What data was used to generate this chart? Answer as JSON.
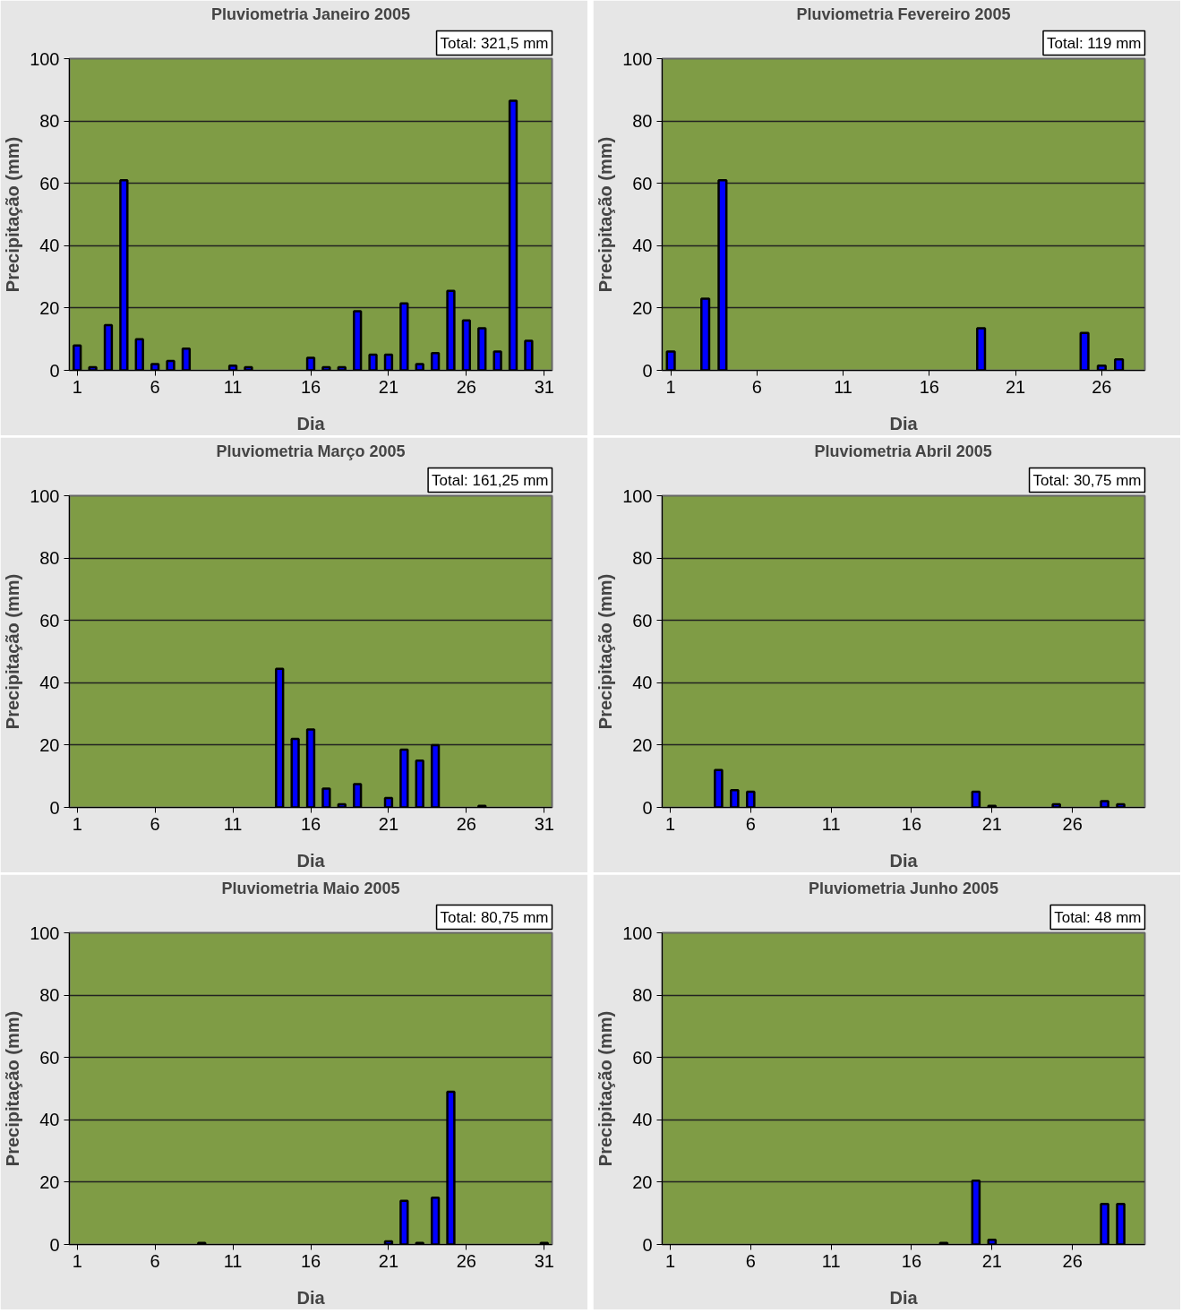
{
  "chart_data": [
    {
      "type": "bar",
      "title": "Pluviometria Janeiro 2005",
      "xlabel": "Dia",
      "ylabel": "Precipitação (mm)",
      "annotations": [
        "Total: 321,5 mm"
      ],
      "color": "#0000ff",
      "grid": "y",
      "xlim": [
        0.5,
        31.5
      ],
      "xticks": [
        1,
        6,
        11,
        16,
        21,
        26,
        31
      ],
      "ylim": [
        0,
        100
      ],
      "yticks": [
        0,
        20,
        40,
        60,
        80,
        100
      ],
      "x": [
        1,
        2,
        3,
        4,
        5,
        6,
        7,
        8,
        11,
        12,
        16,
        17,
        18,
        19,
        20,
        21,
        22,
        23,
        24,
        25,
        26,
        27,
        28,
        29,
        30
      ],
      "values": [
        8,
        1,
        14.5,
        61,
        10,
        2,
        3,
        7,
        1.5,
        1,
        4,
        1,
        1,
        19,
        5,
        5,
        21.5,
        2,
        5.5,
        25.5,
        16,
        13.5,
        6,
        86.5,
        9.5
      ]
    },
    {
      "type": "bar",
      "title": "Pluviometria Fevereiro 2005",
      "xlabel": "Dia",
      "ylabel": "Precipitação (mm)",
      "annotations": [
        "Total: 119 mm"
      ],
      "color": "#0000ff",
      "grid": "y",
      "xlim": [
        0.5,
        28.5
      ],
      "xticks": [
        1,
        6,
        11,
        16,
        21,
        26
      ],
      "ylim": [
        0,
        100
      ],
      "yticks": [
        0,
        20,
        40,
        60,
        80,
        100
      ],
      "x": [
        1,
        3,
        4,
        19,
        25,
        26,
        27
      ],
      "values": [
        6,
        23,
        61,
        13.5,
        12,
        1.5,
        3.5
      ]
    },
    {
      "type": "bar",
      "title": "Pluviometria Março 2005",
      "xlabel": "Dia",
      "ylabel": "Precipitação (mm)",
      "annotations": [
        "Total: 161,25 mm"
      ],
      "color": "#0000ff",
      "grid": "y",
      "xlim": [
        0.5,
        31.5
      ],
      "xticks": [
        1,
        6,
        11,
        16,
        21,
        26,
        31
      ],
      "ylim": [
        0,
        100
      ],
      "yticks": [
        0,
        20,
        40,
        60,
        80,
        100
      ],
      "x": [
        14,
        15,
        16,
        17,
        18,
        19,
        21,
        22,
        23,
        24,
        27
      ],
      "values": [
        44.5,
        22,
        25,
        6,
        1,
        7.5,
        3,
        18.5,
        15,
        20,
        0.5
      ]
    },
    {
      "type": "bar",
      "title": "Pluviometria Abril 2005",
      "xlabel": "Dia",
      "ylabel": "Precipitação (mm)",
      "annotations": [
        "Total: 30,75 mm"
      ],
      "color": "#0000ff",
      "grid": "y",
      "xlim": [
        0.5,
        30.5
      ],
      "xticks": [
        1,
        6,
        11,
        16,
        21,
        26
      ],
      "ylim": [
        0,
        100
      ],
      "yticks": [
        0,
        20,
        40,
        60,
        80,
        100
      ],
      "x": [
        4,
        5,
        6,
        20,
        21,
        25,
        28,
        29
      ],
      "values": [
        12,
        5.5,
        5,
        5,
        0.5,
        1,
        2,
        1
      ]
    },
    {
      "type": "bar",
      "title": "Pluviometria Maio 2005",
      "xlabel": "Dia",
      "ylabel": "Precipitação (mm)",
      "annotations": [
        "Total: 80,75 mm"
      ],
      "color": "#0000ff",
      "grid": "y",
      "xlim": [
        0.5,
        31.5
      ],
      "xticks": [
        1,
        6,
        11,
        16,
        21,
        26,
        31
      ],
      "ylim": [
        0,
        100
      ],
      "yticks": [
        0,
        20,
        40,
        60,
        80,
        100
      ],
      "x": [
        9,
        21,
        22,
        23,
        24,
        25,
        31
      ],
      "values": [
        0.5,
        1,
        14,
        0.5,
        15,
        49,
        0.5
      ]
    },
    {
      "type": "bar",
      "title": "Pluviometria Junho 2005",
      "xlabel": "Dia",
      "ylabel": "Precipitação (mm)",
      "annotations": [
        "Total: 48 mm"
      ],
      "color": "#0000ff",
      "grid": "y",
      "xlim": [
        0.5,
        30.5
      ],
      "xticks": [
        1,
        6,
        11,
        16,
        21,
        26
      ],
      "ylim": [
        0,
        100
      ],
      "yticks": [
        0,
        20,
        40,
        60,
        80,
        100
      ],
      "x": [
        18,
        20,
        21,
        28,
        29
      ],
      "values": [
        0.5,
        20.5,
        1.5,
        13,
        13
      ]
    }
  ]
}
